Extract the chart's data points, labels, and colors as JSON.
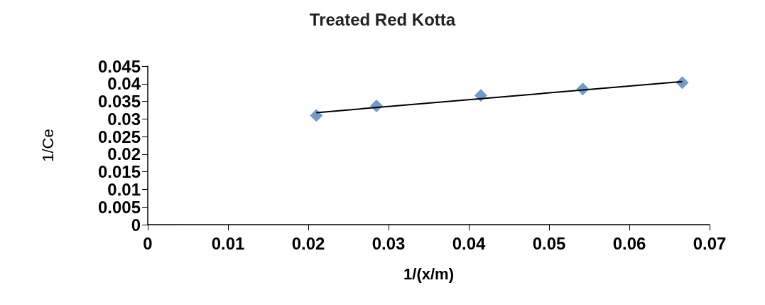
{
  "chart_data": {
    "type": "scatter",
    "title": "Treated Red Kotta",
    "xlabel": "1/(x/m)",
    "ylabel": "1/Ce",
    "series": [
      {
        "type": "scatter",
        "color": "#4f81bd",
        "marker": "diamond",
        "x": [
          0.021,
          0.0285,
          0.0415,
          0.0542,
          0.0666
        ],
        "values": [
          0.031,
          0.0337,
          0.0367,
          0.0385,
          0.0403
        ]
      },
      {
        "type": "line",
        "color": "#000000",
        "marker": "none",
        "x": [
          0.021,
          0.0666
        ],
        "values": [
          0.0318,
          0.0406
        ]
      }
    ],
    "xlim": [
      0,
      0.07
    ],
    "xticks": [
      0,
      0.01,
      0.02,
      0.03,
      0.04,
      0.05,
      0.06,
      0.07
    ],
    "ylim": [
      0,
      0.045
    ],
    "yticks": [
      0,
      0.005,
      0.01,
      0.015,
      0.02,
      0.025,
      0.03,
      0.035,
      0.04,
      0.045
    ],
    "grid": false
  }
}
